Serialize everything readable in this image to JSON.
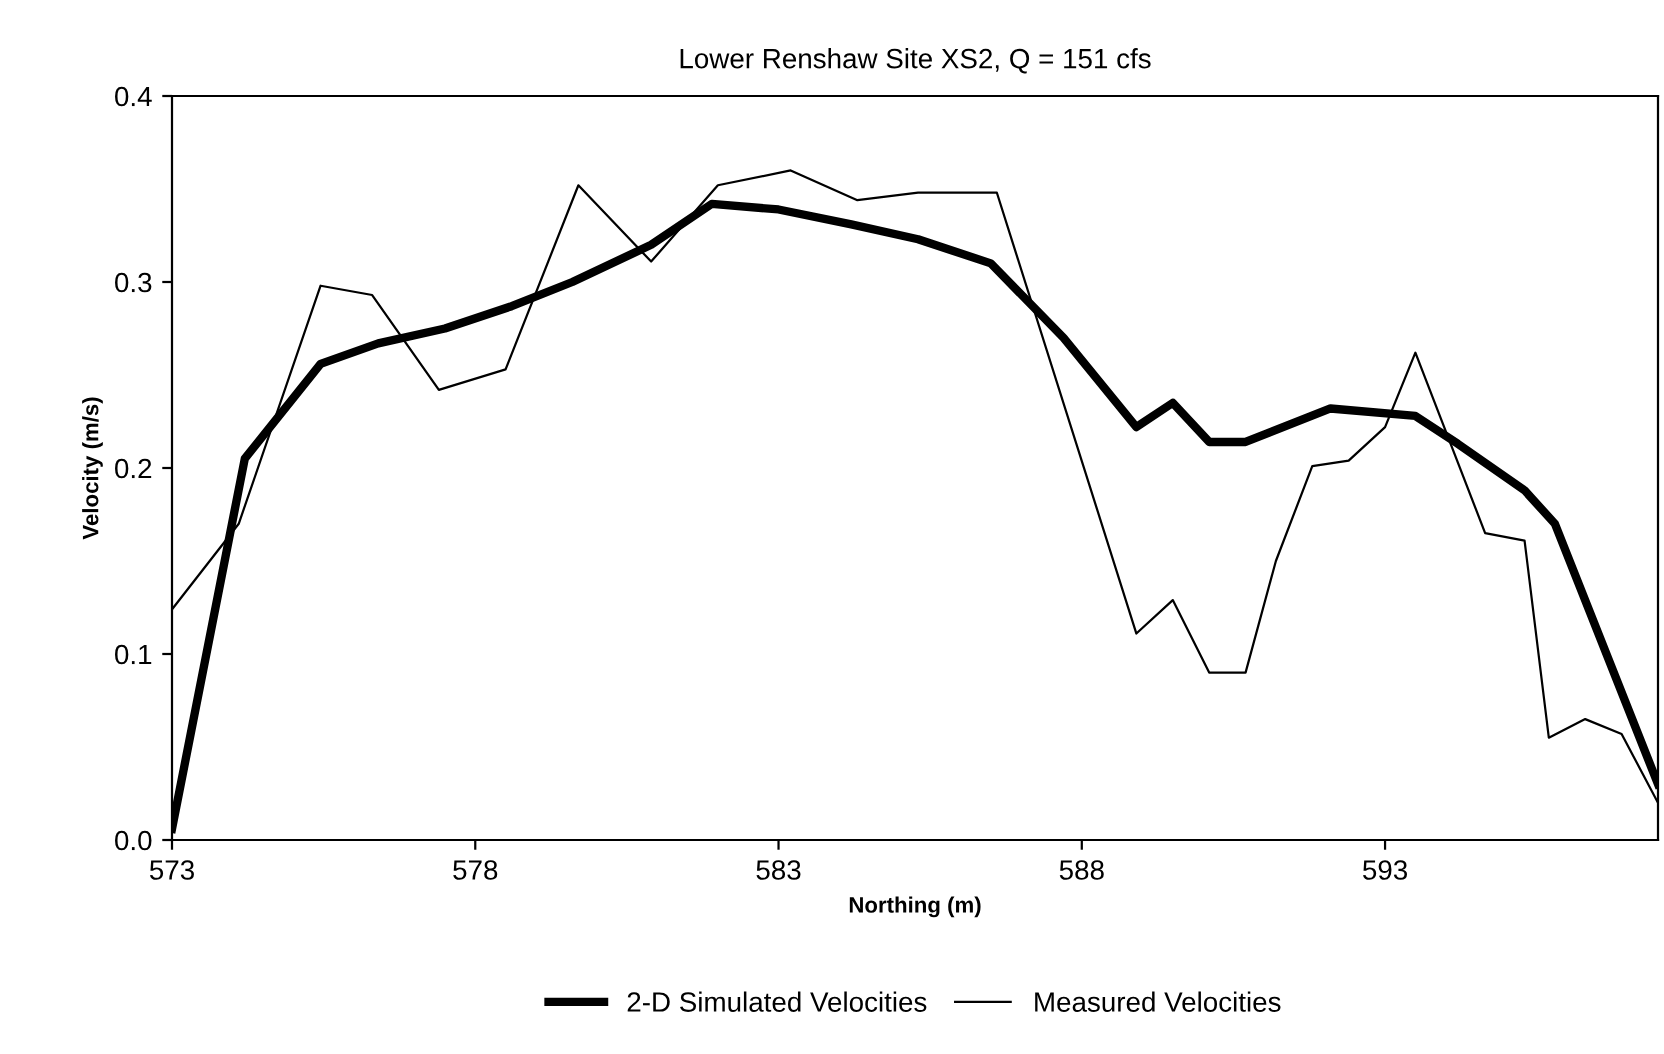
{
  "chart_data": {
    "type": "line",
    "title": "Lower Renshaw Site XS2, Q = 151 cfs",
    "xlabel": "Northing (m)",
    "ylabel": "Velocity (m/s)",
    "xlim": [
      573,
      597.5
    ],
    "xticks": [
      573,
      578,
      583,
      588,
      593
    ],
    "ylim": [
      0,
      0.4
    ],
    "yticks": [
      {
        "value": 0,
        "label": "0.0"
      },
      0.1,
      0.2,
      0.3,
      0.4
    ],
    "grid": false,
    "legend": "bottom",
    "marker": "none",
    "series": [
      {
        "name": "2-D Simulated Velocities",
        "color": "#000000",
        "x": [
          573,
          574.2,
          575.45,
          576.4,
          577.5,
          578.6,
          579.6,
          580.9,
          581.9,
          583.0,
          584.2,
          585.3,
          586.5,
          587.7,
          588.9,
          589.5,
          590.1,
          590.7,
          592.1,
          593.5,
          594.2,
          595.3,
          595.8,
          597.5
        ],
        "values": [
          0.006,
          0.205,
          0.256,
          0.267,
          0.275,
          0.287,
          0.3,
          0.32,
          0.342,
          0.339,
          0.331,
          0.323,
          0.31,
          0.27,
          0.222,
          0.235,
          0.214,
          0.214,
          0.232,
          0.228,
          0.213,
          0.188,
          0.17,
          0.03
        ]
      },
      {
        "name": "Measured Velocities",
        "color": "#000000",
        "x": [
          573,
          574.1,
          575.45,
          576.3,
          577.4,
          578.5,
          579.7,
          580.9,
          582.0,
          583.2,
          584.3,
          585.3,
          586.6,
          588.9,
          589.5,
          590.1,
          590.7,
          591.2,
          591.8,
          592.4,
          593.0,
          593.5,
          594.65,
          595.3,
          595.7,
          596.3,
          596.9,
          597.5
        ],
        "values": [
          0.124,
          0.17,
          0.298,
          0.293,
          0.242,
          0.253,
          0.352,
          0.311,
          0.352,
          0.36,
          0.344,
          0.348,
          0.348,
          0.111,
          0.129,
          0.09,
          0.09,
          0.15,
          0.201,
          0.204,
          0.222,
          0.262,
          0.165,
          0.161,
          0.055,
          0.065,
          0.057,
          0.02
        ]
      }
    ]
  }
}
